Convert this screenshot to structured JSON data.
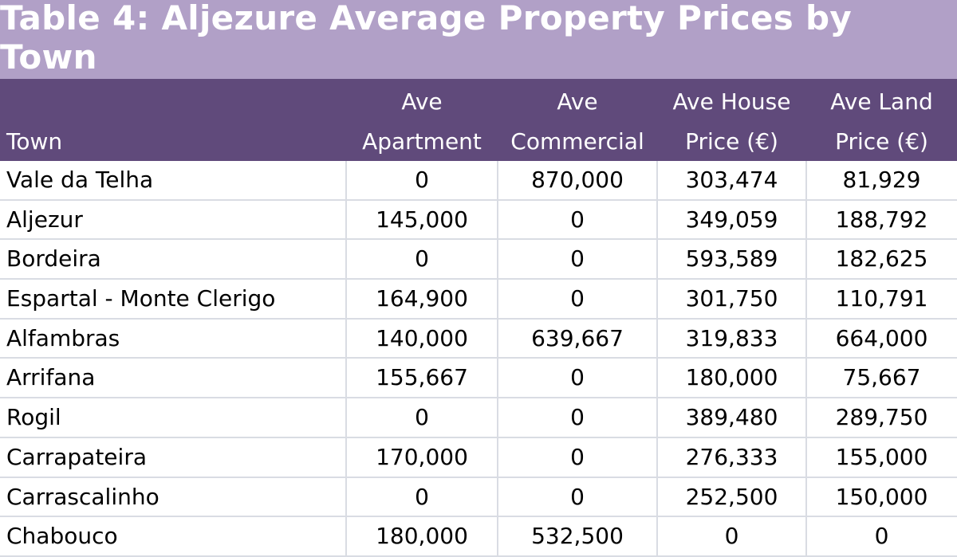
{
  "chart_data": {
    "type": "table",
    "title": "Table 4: Aljezure Average Property Prices by Town",
    "columns": [
      {
        "line1": "",
        "line2": "Town"
      },
      {
        "line1": "Ave",
        "line2": "Apartment"
      },
      {
        "line1": "Ave",
        "line2": "Commercial"
      },
      {
        "line1": "Ave House",
        "line2": "Price (€)"
      },
      {
        "line1": "Ave Land",
        "line2": "Price (€)"
      }
    ],
    "rows": [
      [
        "Vale da Telha",
        "0",
        "870,000",
        "303,474",
        "81,929"
      ],
      [
        "Aljezur",
        "145,000",
        "0",
        "349,059",
        "188,792"
      ],
      [
        "Bordeira",
        "0",
        "0",
        "593,589",
        "182,625"
      ],
      [
        "Espartal - Monte Clerigo",
        "164,900",
        "0",
        "301,750",
        "110,791"
      ],
      [
        "Alfambras",
        "140,000",
        "639,667",
        "319,833",
        "664,000"
      ],
      [
        "Arrifana",
        "155,667",
        "0",
        "180,000",
        "75,667"
      ],
      [
        "Rogil",
        "0",
        "0",
        "389,480",
        "289,750"
      ],
      [
        "Carrapateira",
        "170,000",
        "0",
        "276,333",
        "155,000"
      ],
      [
        "Carrascalinho",
        "0",
        "0",
        "252,500",
        "150,000"
      ],
      [
        "Chabouco",
        "180,000",
        "532,500",
        "0",
        "0"
      ]
    ],
    "colors": {
      "title_bg": "#b1a0c7",
      "header_bg": "#604a7b",
      "header_text": "#ffffff",
      "grid": "#d9dce3"
    }
  }
}
